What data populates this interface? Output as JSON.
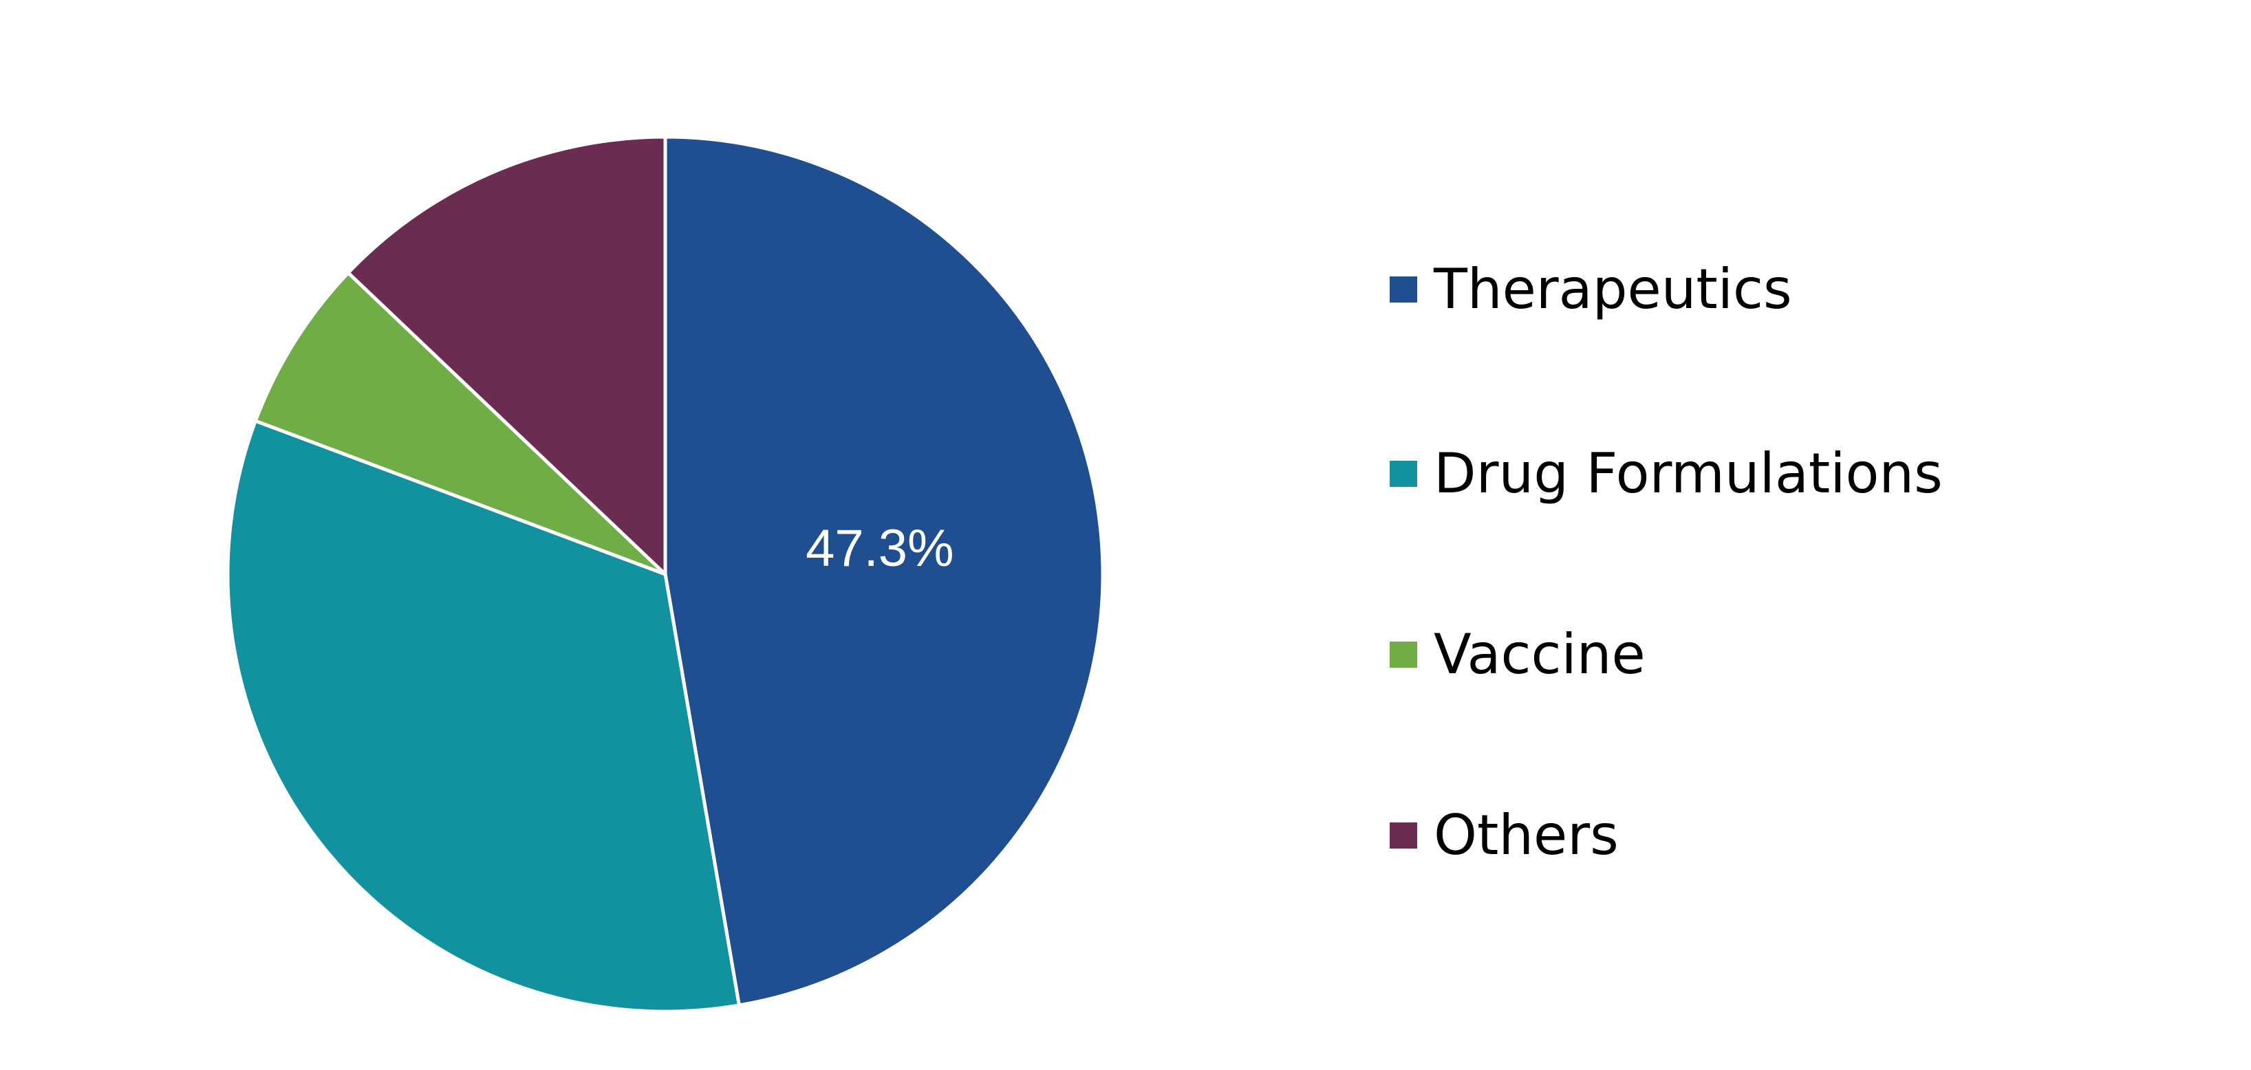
{
  "chart_data": {
    "type": "pie",
    "categories": [
      "Therapeutics",
      "Drug Formulations",
      "Vaccine",
      "Others"
    ],
    "values": [
      47.3,
      33.4,
      6.4,
      12.9
    ],
    "colors": [
      "#1f4e91",
      "#12929e",
      "#70ad47",
      "#6b2c51"
    ],
    "data_labels": [
      "47.3%",
      "",
      "",
      ""
    ],
    "start": "top",
    "direction": "clockwise",
    "legend": {
      "placement": "right",
      "entries": [
        "Therapeutics",
        "Drug Formulations",
        "Vaccine",
        "Others"
      ]
    }
  }
}
